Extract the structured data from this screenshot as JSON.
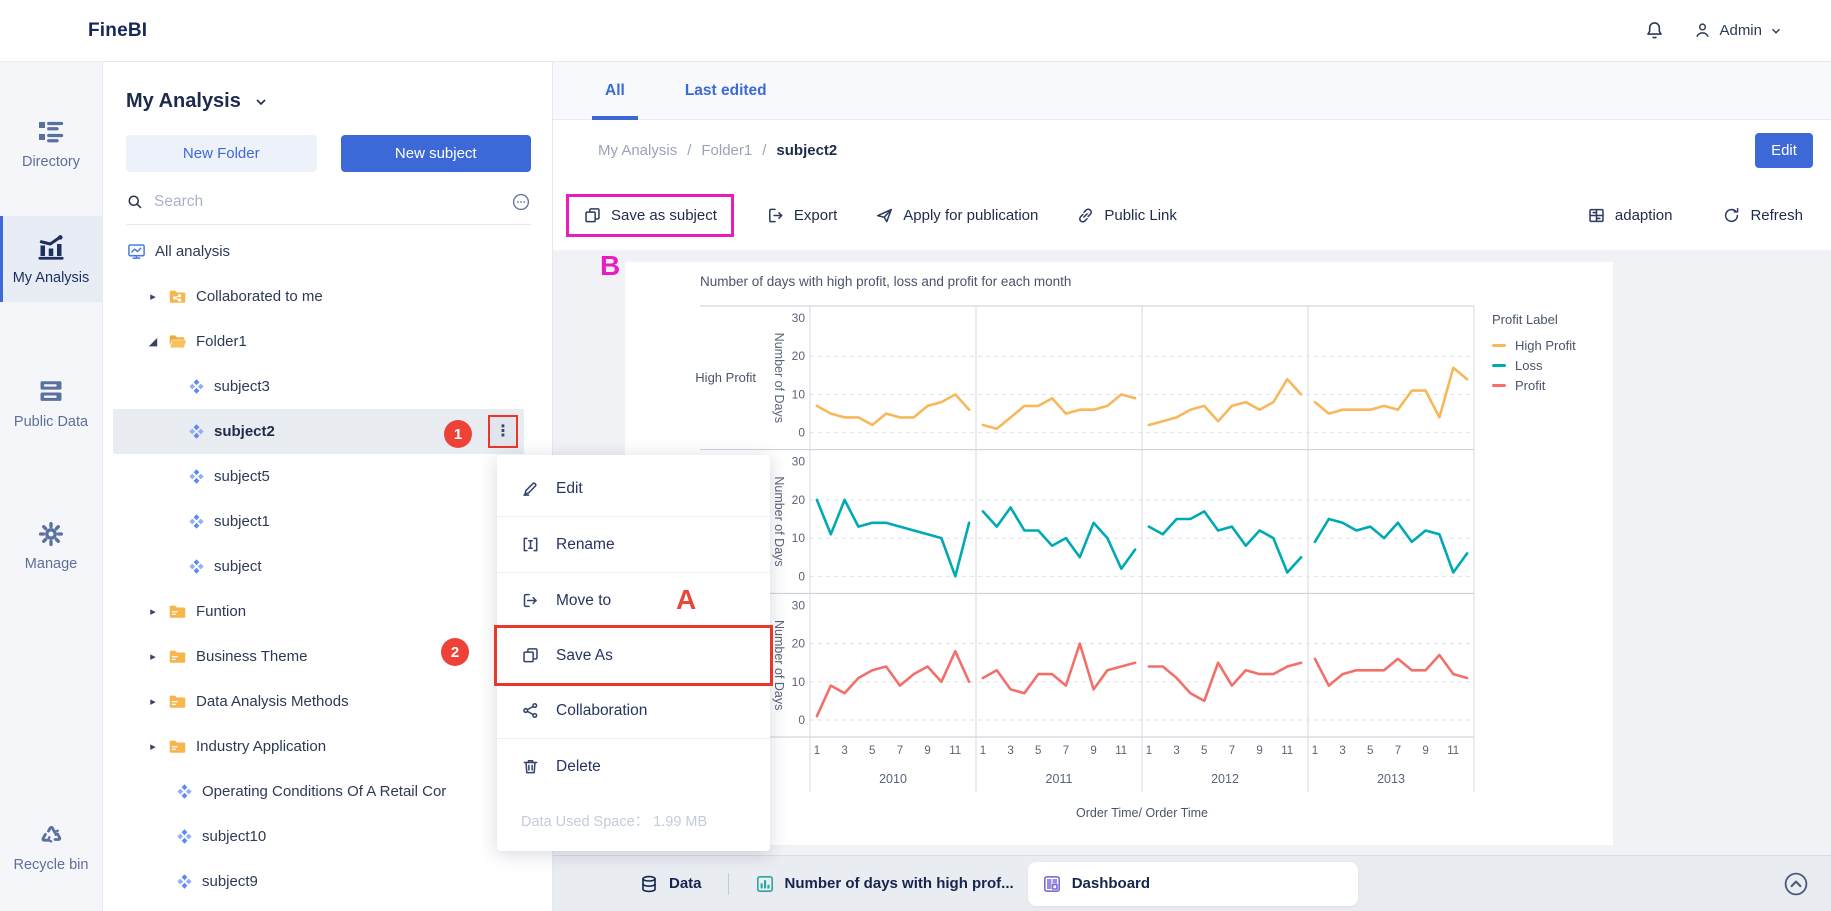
{
  "app": {
    "logo": "FineBI",
    "user": "Admin"
  },
  "colors": {
    "primary": "#3c68d8",
    "highlight_red": "#e8382c",
    "highlight_magenta": "#e91bc3",
    "badge_red": "#ee4238"
  },
  "rail": {
    "items": [
      {
        "label": "Directory",
        "icon": "directory-icon",
        "active": false
      },
      {
        "label": "My Analysis",
        "icon": "my-analysis-icon",
        "active": true
      },
      {
        "label": "Public Data",
        "icon": "public-data-icon",
        "active": false
      },
      {
        "label": "Manage",
        "icon": "manage-icon",
        "active": false
      },
      {
        "label": "Recycle bin",
        "icon": "recycle-bin-icon",
        "active": false
      }
    ]
  },
  "panel": {
    "title": "My Analysis",
    "new_folder_label": "New Folder",
    "new_subject_label": "New subject",
    "search_placeholder": "Search",
    "tree": [
      {
        "label": "All analysis",
        "icon": "monitor-icon",
        "level": "i0"
      },
      {
        "label": "Collaborated to me",
        "icon": "folder-share-icon",
        "level": "i1",
        "caret": "right"
      },
      {
        "label": "Folder1",
        "icon": "folder-open-icon",
        "level": "i1",
        "caret": "down"
      },
      {
        "label": "subject3",
        "icon": "subject-icon",
        "level": "i2"
      },
      {
        "label": "subject2",
        "icon": "subject-icon",
        "level": "i2",
        "selected": true,
        "kebab": true
      },
      {
        "label": "subject5",
        "icon": "subject-icon",
        "level": "i2"
      },
      {
        "label": "subject1",
        "icon": "subject-icon",
        "level": "i2"
      },
      {
        "label": "subject",
        "icon": "subject-icon",
        "level": "i2"
      },
      {
        "label": "Funtion",
        "icon": "folder-icon",
        "level": "i1",
        "caret": "right"
      },
      {
        "label": "Business Theme",
        "icon": "folder-icon",
        "level": "i1",
        "caret": "right"
      },
      {
        "label": "Data Analysis Methods",
        "icon": "folder-icon",
        "level": "i1",
        "caret": "right"
      },
      {
        "label": "Industry Application",
        "icon": "folder-icon",
        "level": "i1",
        "caret": "right"
      },
      {
        "label": "Operating Conditions Of A Retail Cor",
        "icon": "subject-icon",
        "level": "i1s"
      },
      {
        "label": "subject10",
        "icon": "subject-icon",
        "level": "i1s"
      },
      {
        "label": "subject9",
        "icon": "subject-icon",
        "level": "i1s"
      }
    ]
  },
  "context_menu": {
    "items": [
      {
        "label": "Edit",
        "icon": "edit-icon"
      },
      {
        "label": "Rename",
        "icon": "rename-icon"
      },
      {
        "label": "Move to",
        "icon": "move-to-icon"
      },
      {
        "label": "Save As",
        "icon": "save-as-icon",
        "highlighted": true
      },
      {
        "label": "Collaboration",
        "icon": "collaboration-icon"
      },
      {
        "label": "Delete",
        "icon": "delete-icon"
      }
    ],
    "footer": "Data Used Space： 1.99 MB"
  },
  "header": {
    "tabs": [
      {
        "label": "All",
        "active": true
      },
      {
        "label": "Last edited",
        "active": false
      }
    ],
    "breadcrumb": [
      "My Analysis",
      "Folder1",
      "subject2"
    ],
    "edit_button": "Edit"
  },
  "toolbar": {
    "left": [
      {
        "label": "Save as subject",
        "icon": "save-as-subject-icon",
        "boxed": true
      },
      {
        "label": "Export",
        "icon": "export-icon"
      },
      {
        "label": "Apply for publication",
        "icon": "apply-publication-icon"
      },
      {
        "label": "Public Link",
        "icon": "public-link-icon"
      }
    ],
    "right": [
      {
        "label": "adaption",
        "icon": "adaption-icon"
      },
      {
        "label": "Refresh",
        "icon": "refresh-icon"
      }
    ]
  },
  "annotations": {
    "badge1": "1",
    "badge2": "2",
    "letter_a": "A",
    "letter_b": "B"
  },
  "chart_data": {
    "type": "line",
    "title": "Number of days with high profit, loss and profit for each month",
    "facet_rows": [
      "High Profit",
      "Loss",
      "Profit"
    ],
    "ylabel": "Number of Days",
    "xlabel": "Order Time/ Order Time",
    "legend_title": "Profit Label",
    "legend_position": "right",
    "grid": true,
    "ylim": [
      0,
      30
    ],
    "y_ticks": [
      30,
      20,
      10,
      0
    ],
    "years": [
      "2010",
      "2011",
      "2012",
      "2013"
    ],
    "x_ticks": [
      "1",
      "3",
      "5",
      "7",
      "9",
      "11"
    ],
    "months_per_year": 12,
    "series": [
      {
        "name": "High Profit",
        "color": "#f7b85c",
        "values_by_year": {
          "2010": [
            7,
            5,
            4,
            4,
            2,
            5,
            4,
            4,
            7,
            8,
            10,
            6
          ],
          "2011": [
            2,
            1,
            4,
            7,
            7,
            9,
            5,
            6,
            6,
            7,
            10,
            9
          ],
          "2012": [
            2,
            3,
            4,
            6,
            7,
            3,
            7,
            8,
            6,
            8,
            14,
            10
          ],
          "2013": [
            8,
            5,
            6,
            6,
            6,
            7,
            6,
            11,
            11,
            4,
            17,
            14
          ]
        }
      },
      {
        "name": "Loss",
        "color": "#00aab4",
        "values_by_year": {
          "2010": [
            20,
            11,
            20,
            13,
            14,
            14,
            13,
            12,
            11,
            10,
            0,
            14
          ],
          "2011": [
            17,
            13,
            18,
            12,
            12,
            8,
            10,
            5,
            14,
            10,
            2,
            7
          ],
          "2012": [
            13,
            11,
            15,
            15,
            17,
            12,
            13,
            8,
            12,
            10,
            1,
            5
          ],
          "2013": [
            9,
            15,
            14,
            12,
            13,
            10,
            14,
            9,
            12,
            11,
            1,
            6
          ]
        }
      },
      {
        "name": "Profit",
        "color": "#f2706a",
        "values_by_year": {
          "2010": [
            1,
            9,
            7,
            11,
            13,
            14,
            9,
            12,
            14,
            10,
            18,
            10
          ],
          "2011": [
            11,
            13,
            8,
            7,
            12,
            12,
            9,
            20,
            8,
            13,
            14,
            15
          ],
          "2012": [
            14,
            14,
            11,
            7,
            5,
            15,
            9,
            13,
            12,
            12,
            14,
            15
          ],
          "2013": [
            16,
            9,
            12,
            13,
            13,
            13,
            16,
            13,
            13,
            17,
            12,
            11
          ]
        }
      }
    ]
  },
  "bottom_bar": {
    "tabs": [
      {
        "label": "Data",
        "icon": "data-icon",
        "active": false
      },
      {
        "label": "Number of days with high prof...",
        "icon": "chart-tab-icon",
        "active": false
      },
      {
        "label": "Dashboard",
        "icon": "dashboard-icon",
        "active": true
      }
    ]
  }
}
